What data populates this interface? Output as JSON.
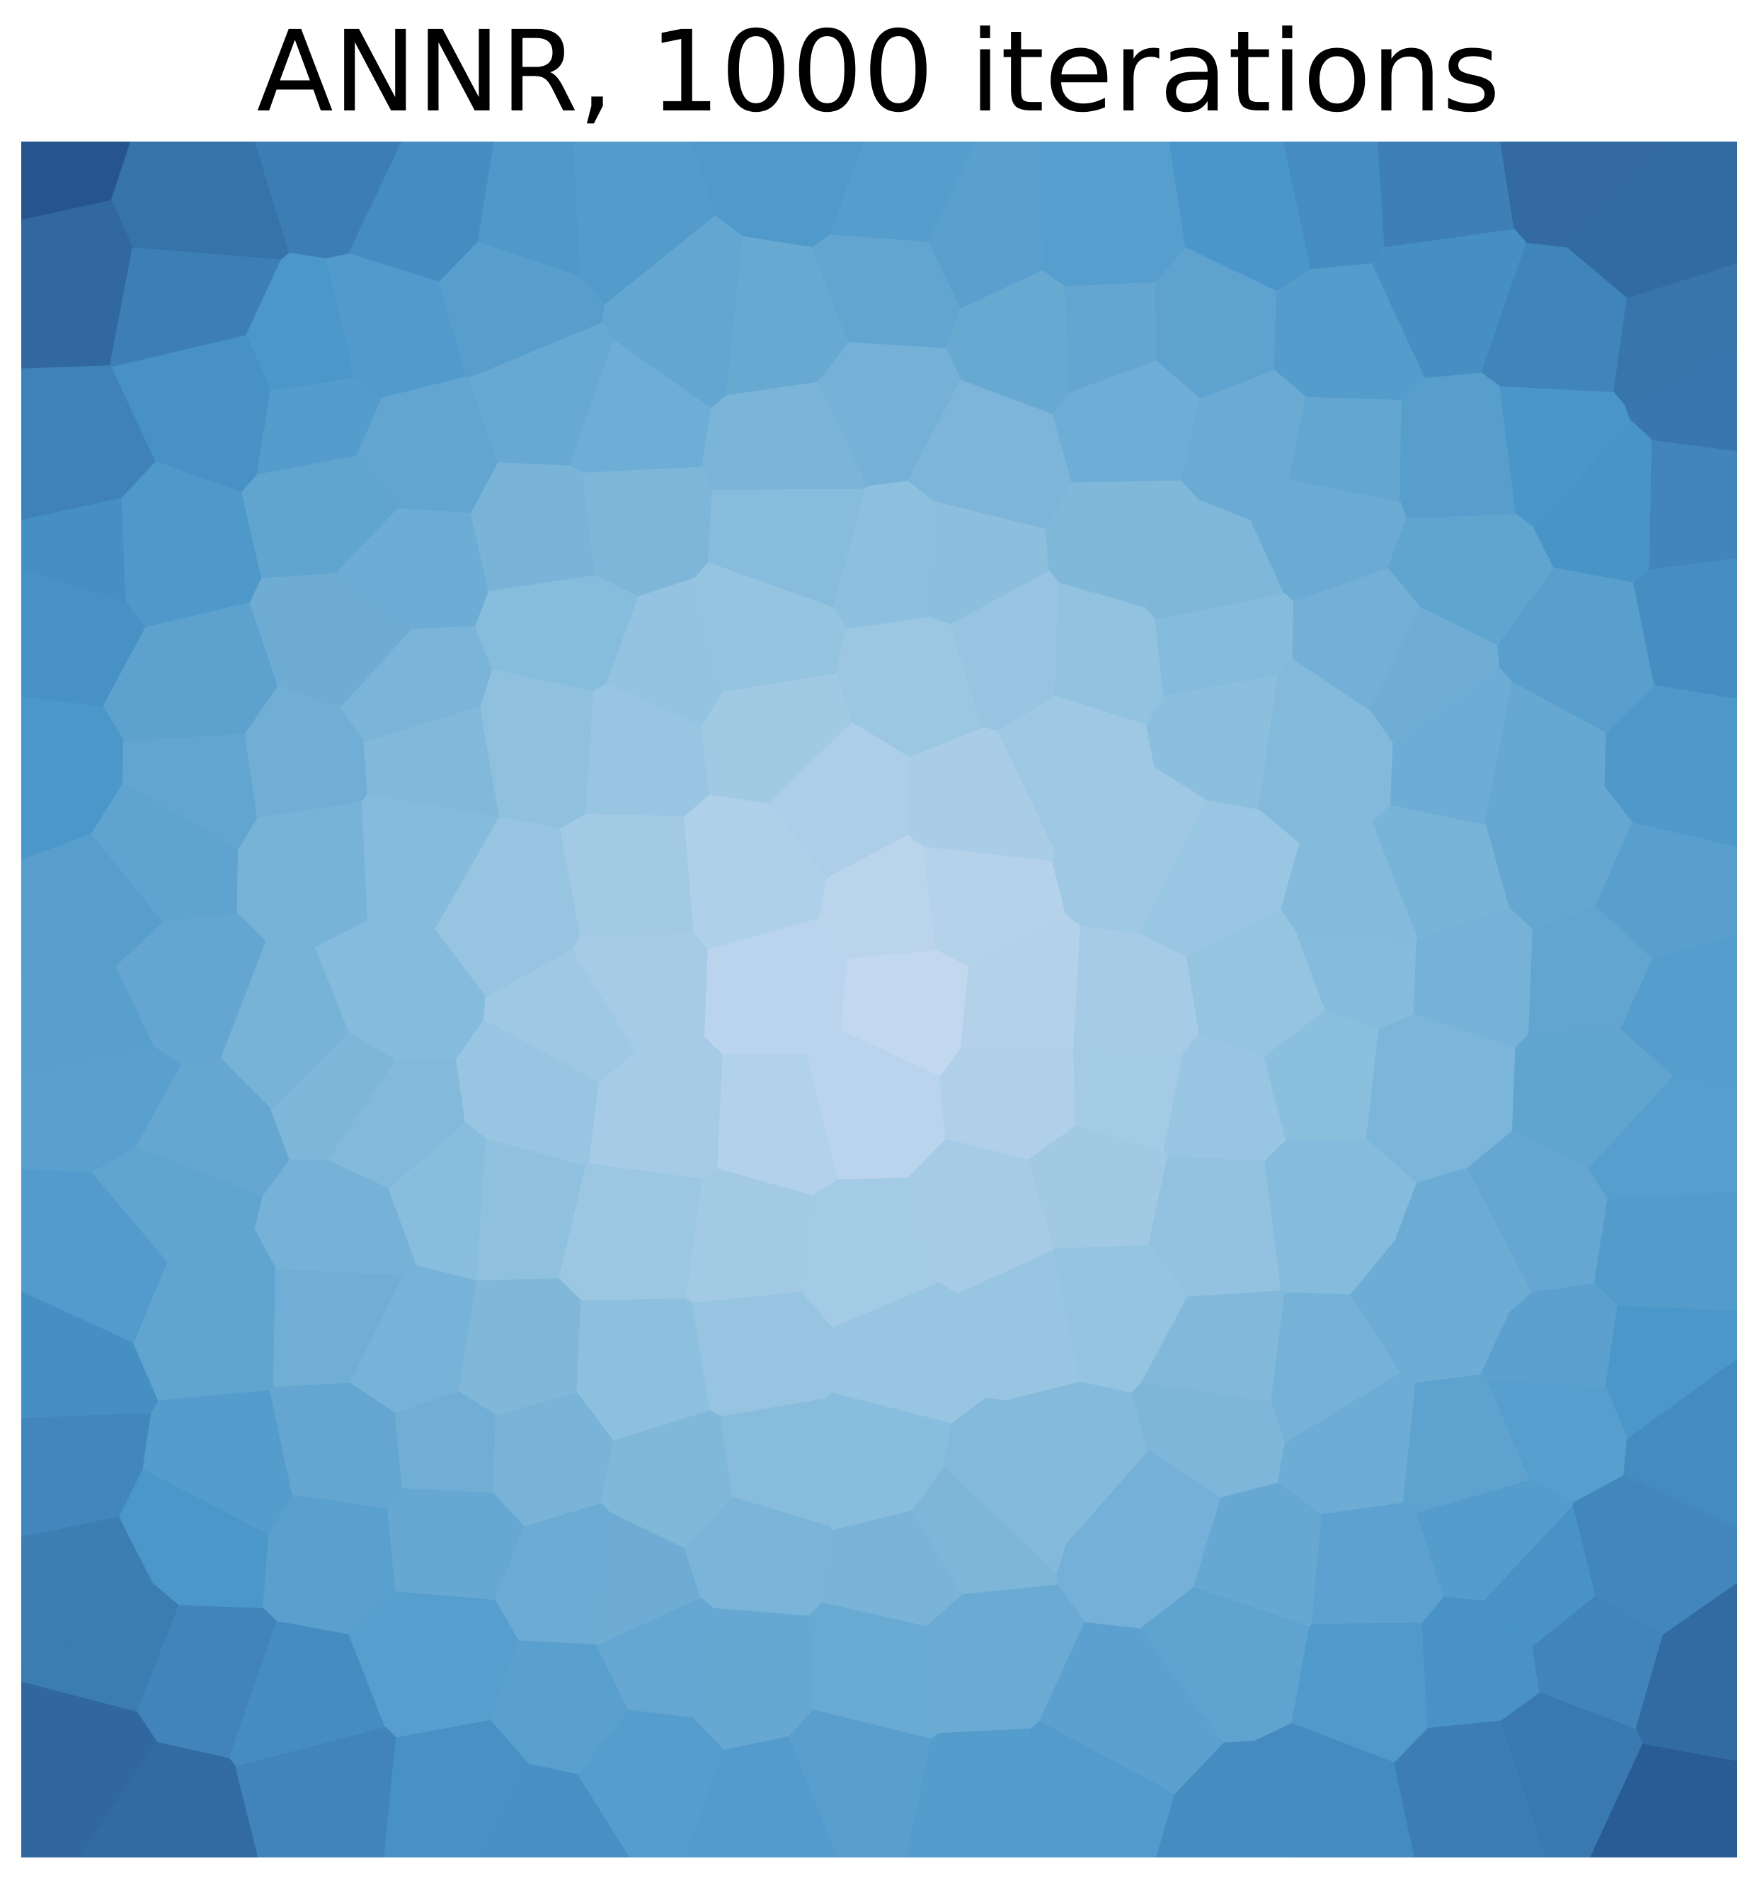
{
  "title": "ANNR, 1000 iterations",
  "mosaic": {
    "description_colors": {
      "center": "#c6daf0",
      "mid": "#8fc1df",
      "edge": "#2f74b7",
      "corner": "#23508a"
    }
  }
}
